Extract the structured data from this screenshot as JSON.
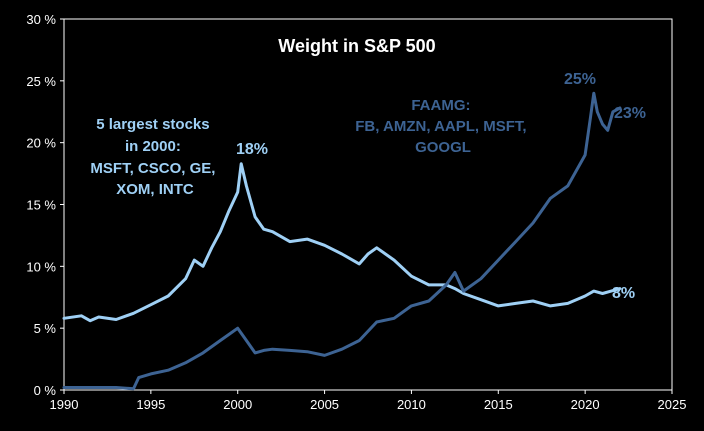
{
  "chart_data": {
    "type": "line",
    "title": "Weight in S&P 500",
    "xlim": [
      1990,
      2025
    ],
    "ylim": [
      0,
      30
    ],
    "x_ticks": [
      "1990",
      "1995",
      "2000",
      "2005",
      "2010",
      "2015",
      "2020",
      "2025"
    ],
    "y_ticks": [
      "0 %",
      "5 %",
      "10 %",
      "15 %",
      "20 %",
      "25 %",
      "30 %"
    ],
    "grid": false,
    "series": [
      {
        "name": "5 largest stocks in 2000: MSFT, CSCO, GE, XOM, INTC",
        "color": "#9fd0f5",
        "x": [
          1990.0,
          1991.0,
          1991.5,
          1992.0,
          1993.0,
          1994.0,
          1995.0,
          1996.0,
          1997.0,
          1997.5,
          1998.0,
          1998.5,
          1999.0,
          1999.5,
          2000.0,
          2000.2,
          2000.5,
          2001.0,
          2001.5,
          2002.0,
          2003.0,
          2004.0,
          2005.0,
          2006.0,
          2007.0,
          2007.5,
          2008.0,
          2009.0,
          2010.0,
          2011.0,
          2012.0,
          2012.5,
          2013.0,
          2014.0,
          2015.0,
          2016.0,
          2017.0,
          2018.0,
          2019.0,
          2020.0,
          2020.5,
          2021.0,
          2021.5,
          2022.0
        ],
        "y": [
          5.8,
          6.0,
          5.6,
          5.9,
          5.7,
          6.2,
          6.9,
          7.6,
          9.0,
          10.5,
          10.0,
          11.5,
          12.8,
          14.5,
          16.0,
          18.3,
          16.5,
          14.0,
          13.0,
          12.8,
          12.0,
          12.2,
          11.7,
          11.0,
          10.2,
          11.0,
          11.5,
          10.5,
          9.2,
          8.5,
          8.5,
          8.2,
          7.8,
          7.3,
          6.8,
          7.0,
          7.2,
          6.8,
          7.0,
          7.6,
          8.0,
          7.8,
          8.0,
          8.2
        ]
      },
      {
        "name": "FAAMG: FB, AMZN, AAPL, MSFT, GOOGL",
        "color": "#3d6393",
        "x": [
          1990.0,
          1991.0,
          1992.0,
          1993.0,
          1994.0,
          1994.3,
          1995.0,
          1996.0,
          1997.0,
          1998.0,
          1999.0,
          1999.5,
          2000.0,
          2000.5,
          2001.0,
          2001.5,
          2002.0,
          2003.0,
          2004.0,
          2005.0,
          2006.0,
          2007.0,
          2008.0,
          2009.0,
          2010.0,
          2011.0,
          2012.0,
          2012.5,
          2013.0,
          2014.0,
          2015.0,
          2016.0,
          2017.0,
          2018.0,
          2019.0,
          2020.0,
          2020.3,
          2020.5,
          2020.7,
          2021.0,
          2021.3,
          2021.6,
          2022.0
        ],
        "y": [
          0.2,
          0.2,
          0.2,
          0.2,
          0.1,
          1.0,
          1.3,
          1.6,
          2.2,
          3.0,
          4.0,
          4.5,
          5.0,
          4.0,
          3.0,
          3.2,
          3.3,
          3.2,
          3.1,
          2.8,
          3.3,
          4.0,
          5.5,
          5.8,
          6.8,
          7.2,
          8.5,
          9.5,
          8.0,
          9.0,
          10.5,
          12.0,
          13.5,
          15.5,
          16.5,
          19.0,
          22.0,
          24.0,
          22.5,
          21.5,
          21.0,
          22.5,
          22.8
        ]
      }
    ],
    "annotations": {
      "left_label_lines": [
        "5 largest stocks",
        "in 2000:",
        "MSFT, CSCO, GE,",
        "XOM, INTC"
      ],
      "right_label_lines": [
        "FAAMG:",
        "FB, AMZN, AAPL, MSFT,",
        "GOOGL"
      ],
      "peak_2000": "18%",
      "end_light": "8%",
      "peak_faamg": "25%",
      "end_faamg": "23%"
    }
  }
}
